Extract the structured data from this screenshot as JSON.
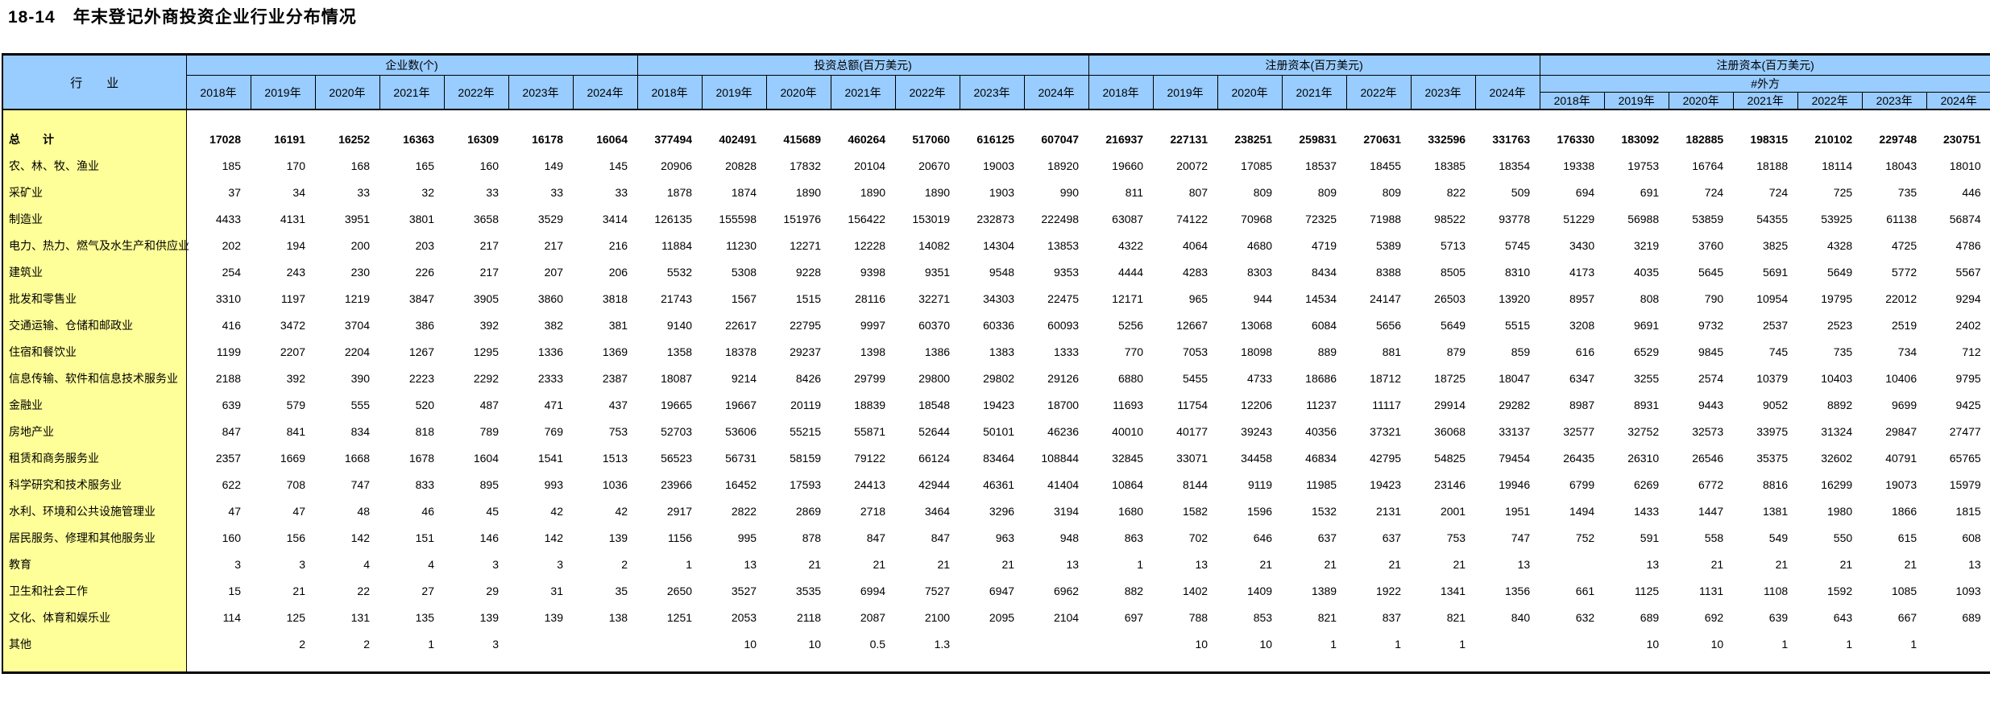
{
  "title": "18-14　年末登记外商投资企业行业分布情况",
  "colors": {
    "header_bg": "#99CCFF",
    "label_col_bg": "#FFFF99",
    "border": "#000000",
    "page_bg": "#FFFFFF"
  },
  "table": {
    "corner": "行　　业",
    "groups": [
      {
        "label": "企业数(个)",
        "years": [
          "2018年",
          "2019年",
          "2020年",
          "2021年",
          "2022年",
          "2023年",
          "2024年"
        ]
      },
      {
        "label": "投资总额(百万美元)",
        "years": [
          "2018年",
          "2019年",
          "2020年",
          "2021年",
          "2022年",
          "2023年",
          "2024年"
        ]
      },
      {
        "label": "注册资本(百万美元)",
        "years": [
          "2018年",
          "2019年",
          "2020年",
          "2021年",
          "2022年",
          "2023年",
          "2024年"
        ]
      },
      {
        "label": "注册资本(百万美元)",
        "sublabel": "#外方",
        "years": [
          "2018年",
          "2019年",
          "2020年",
          "2021年",
          "2022年",
          "2023年",
          "2024年"
        ]
      }
    ],
    "rows": [
      {
        "label": "总　　计",
        "bold": true,
        "values": [
          [
            17028,
            16191,
            16252,
            16363,
            16309,
            16178,
            16064
          ],
          [
            377494,
            402491,
            415689,
            460264,
            517060,
            616125,
            607047
          ],
          [
            216937,
            227131,
            238251,
            259831,
            270631,
            332596,
            331763
          ],
          [
            176330,
            183092,
            182885,
            198315,
            210102,
            229748,
            230751
          ]
        ]
      },
      {
        "label": "农、林、牧、渔业",
        "values": [
          [
            185,
            170,
            168,
            165,
            160,
            149,
            145
          ],
          [
            20906,
            20828,
            17832,
            20104,
            20670,
            19003,
            18920
          ],
          [
            19660,
            20072,
            17085,
            18537,
            18455,
            18385,
            18354
          ],
          [
            19338,
            19753,
            16764,
            18188,
            18114,
            18043,
            18010
          ]
        ]
      },
      {
        "label": "采矿业",
        "values": [
          [
            37,
            34,
            33,
            32,
            33,
            33,
            33
          ],
          [
            1878,
            1874,
            1890,
            1890,
            1890,
            1903,
            990
          ],
          [
            811,
            807,
            809,
            809,
            809,
            822,
            509
          ],
          [
            694,
            691,
            724,
            724,
            725,
            735,
            446
          ]
        ]
      },
      {
        "label": "制造业",
        "values": [
          [
            4433,
            4131,
            3951,
            3801,
            3658,
            3529,
            3414
          ],
          [
            126135,
            155598,
            151976,
            156422,
            153019,
            232873,
            222498
          ],
          [
            63087,
            74122,
            70968,
            72325,
            71988,
            98522,
            93778
          ],
          [
            51229,
            56988,
            53859,
            54355,
            53925,
            61138,
            56874
          ]
        ]
      },
      {
        "label": "电力、热力、燃气及水生产和供应业",
        "values": [
          [
            202,
            194,
            200,
            203,
            217,
            217,
            216
          ],
          [
            11884,
            11230,
            12271,
            12228,
            14082,
            14304,
            13853
          ],
          [
            4322,
            4064,
            4680,
            4719,
            5389,
            5713,
            5745
          ],
          [
            3430,
            3219,
            3760,
            3825,
            4328,
            4725,
            4786
          ]
        ]
      },
      {
        "label": "建筑业",
        "values": [
          [
            254,
            243,
            230,
            226,
            217,
            207,
            206
          ],
          [
            5532,
            5308,
            9228,
            9398,
            9351,
            9548,
            9353
          ],
          [
            4444,
            4283,
            8303,
            8434,
            8388,
            8505,
            8310
          ],
          [
            4173,
            4035,
            5645,
            5691,
            5649,
            5772,
            5567
          ]
        ]
      },
      {
        "label": "批发和零售业",
        "values": [
          [
            3310,
            1197,
            1219,
            3847,
            3905,
            3860,
            3818
          ],
          [
            21743,
            1567,
            1515,
            28116,
            32271,
            34303,
            22475
          ],
          [
            12171,
            965,
            944,
            14534,
            24147,
            26503,
            13920
          ],
          [
            8957,
            808,
            790,
            10954,
            19795,
            22012,
            9294
          ]
        ]
      },
      {
        "label": "交通运输、仓储和邮政业",
        "values": [
          [
            416,
            3472,
            3704,
            386,
            392,
            382,
            381
          ],
          [
            9140,
            22617,
            22795,
            9997,
            60370,
            60336,
            60093
          ],
          [
            5256,
            12667,
            13068,
            6084,
            5656,
            5649,
            5515
          ],
          [
            3208,
            9691,
            9732,
            2537,
            2523,
            2519,
            2402
          ]
        ]
      },
      {
        "label": "住宿和餐饮业",
        "values": [
          [
            1199,
            2207,
            2204,
            1267,
            1295,
            1336,
            1369
          ],
          [
            1358,
            18378,
            29237,
            1398,
            1386,
            1383,
            1333
          ],
          [
            770,
            7053,
            18098,
            889,
            881,
            879,
            859
          ],
          [
            616,
            6529,
            9845,
            745,
            735,
            734,
            712
          ]
        ]
      },
      {
        "label": "信息传输、软件和信息技术服务业",
        "values": [
          [
            2188,
            392,
            390,
            2223,
            2292,
            2333,
            2387
          ],
          [
            18087,
            9214,
            8426,
            29799,
            29800,
            29802,
            29126
          ],
          [
            6880,
            5455,
            4733,
            18686,
            18712,
            18725,
            18047
          ],
          [
            6347,
            3255,
            2574,
            10379,
            10403,
            10406,
            9795
          ]
        ]
      },
      {
        "label": "金融业",
        "values": [
          [
            639,
            579,
            555,
            520,
            487,
            471,
            437
          ],
          [
            19665,
            19667,
            20119,
            18839,
            18548,
            19423,
            18700
          ],
          [
            11693,
            11754,
            12206,
            11237,
            11117,
            29914,
            29282
          ],
          [
            8987,
            8931,
            9443,
            9052,
            8892,
            9699,
            9425
          ]
        ]
      },
      {
        "label": "房地产业",
        "values": [
          [
            847,
            841,
            834,
            818,
            789,
            769,
            753
          ],
          [
            52703,
            53606,
            55215,
            55871,
            52644,
            50101,
            46236
          ],
          [
            40010,
            40177,
            39243,
            40356,
            37321,
            36068,
            33137
          ],
          [
            32577,
            32752,
            32573,
            33975,
            31324,
            29847,
            27477
          ]
        ]
      },
      {
        "label": "租赁和商务服务业",
        "values": [
          [
            2357,
            1669,
            1668,
            1678,
            1604,
            1541,
            1513
          ],
          [
            56523,
            56731,
            58159,
            79122,
            66124,
            83464,
            108844
          ],
          [
            32845,
            33071,
            34458,
            46834,
            42795,
            54825,
            79454
          ],
          [
            26435,
            26310,
            26546,
            35375,
            32602,
            40791,
            65765
          ]
        ]
      },
      {
        "label": "科学研究和技术服务业",
        "values": [
          [
            622,
            708,
            747,
            833,
            895,
            993,
            1036
          ],
          [
            23966,
            16452,
            17593,
            24413,
            42944,
            46361,
            41404
          ],
          [
            10864,
            8144,
            9119,
            11985,
            19423,
            23146,
            19946
          ],
          [
            6799,
            6269,
            6772,
            8816,
            16299,
            19073,
            15979
          ]
        ]
      },
      {
        "label": "水利、环境和公共设施管理业",
        "values": [
          [
            47,
            47,
            48,
            46,
            45,
            42,
            42
          ],
          [
            2917,
            2822,
            2869,
            2718,
            3464,
            3296,
            3194
          ],
          [
            1680,
            1582,
            1596,
            1532,
            2131,
            2001,
            1951
          ],
          [
            1494,
            1433,
            1447,
            1381,
            1980,
            1866,
            1815
          ]
        ]
      },
      {
        "label": "居民服务、修理和其他服务业",
        "values": [
          [
            160,
            156,
            142,
            151,
            146,
            142,
            139
          ],
          [
            1156,
            995,
            878,
            847,
            847,
            963,
            948
          ],
          [
            863,
            702,
            646,
            637,
            637,
            753,
            747
          ],
          [
            752,
            591,
            558,
            549,
            550,
            615,
            608
          ]
        ]
      },
      {
        "label": "教育",
        "values": [
          [
            3,
            3,
            4,
            4,
            3,
            3,
            2
          ],
          [
            1,
            13,
            21,
            21,
            21,
            21,
            13
          ],
          [
            1,
            13,
            21,
            21,
            21,
            21,
            13
          ],
          [
            "",
            13,
            21,
            21,
            21,
            21,
            13
          ]
        ]
      },
      {
        "label": "卫生和社会工作",
        "values": [
          [
            15,
            21,
            22,
            27,
            29,
            31,
            35
          ],
          [
            2650,
            3527,
            3535,
            6994,
            7527,
            6947,
            6962
          ],
          [
            882,
            1402,
            1409,
            1389,
            1922,
            1341,
            1356
          ],
          [
            661,
            1125,
            1131,
            1108,
            1592,
            1085,
            1093
          ]
        ]
      },
      {
        "label": "文化、体育和娱乐业",
        "values": [
          [
            114,
            125,
            131,
            135,
            139,
            139,
            138
          ],
          [
            1251,
            2053,
            2118,
            2087,
            2100,
            2095,
            2104
          ],
          [
            697,
            788,
            853,
            821,
            837,
            821,
            840
          ],
          [
            632,
            689,
            692,
            639,
            643,
            667,
            689
          ]
        ]
      },
      {
        "label": "其他",
        "values": [
          [
            "",
            2,
            2,
            1,
            3,
            "",
            ""
          ],
          [
            "",
            10,
            10,
            0.5,
            1.3,
            "",
            ""
          ],
          [
            "",
            10,
            10,
            1,
            1,
            1,
            ""
          ],
          [
            "",
            10,
            10,
            1,
            1,
            1,
            ""
          ]
        ]
      }
    ]
  }
}
